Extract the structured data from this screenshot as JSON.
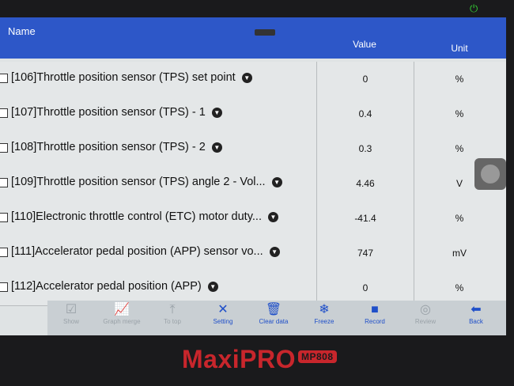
{
  "header": {
    "name": "Name",
    "value": "Value",
    "unit": "Unit"
  },
  "rows": [
    {
      "label": "[106]Throttle position sensor (TPS) set point",
      "value": "0",
      "unit": "%"
    },
    {
      "label": "[107]Throttle position sensor (TPS) - 1",
      "value": "0.4",
      "unit": "%"
    },
    {
      "label": "[108]Throttle position sensor (TPS) - 2",
      "value": "0.3",
      "unit": "%"
    },
    {
      "label": "[109]Throttle position sensor (TPS) angle 2 - Vol...",
      "value": "4.46",
      "unit": "V"
    },
    {
      "label": "[110]Electronic throttle control (ETC) motor duty...",
      "value": "-41.4",
      "unit": "%"
    },
    {
      "label": "[111]Accelerator pedal position (APP) sensor vo...",
      "value": "747",
      "unit": "mV"
    },
    {
      "label": "[112]Accelerator pedal position (APP)",
      "value": "0",
      "unit": "%"
    }
  ],
  "toolbar": [
    {
      "label": "Show",
      "icon": "checkbox-icon",
      "enabled": false
    },
    {
      "label": "Graph merge",
      "icon": "graph-icon",
      "enabled": false
    },
    {
      "label": "To top",
      "icon": "arrow-up-icon",
      "enabled": false
    },
    {
      "label": "Setting",
      "icon": "wrench-icon",
      "enabled": true
    },
    {
      "label": "Clear data",
      "icon": "trash-icon",
      "enabled": true
    },
    {
      "label": "Freeze",
      "icon": "snowflake-icon",
      "enabled": true
    },
    {
      "label": "Record",
      "icon": "camera-icon",
      "enabled": true
    },
    {
      "label": "Review",
      "icon": "play-icon",
      "enabled": false
    },
    {
      "label": "Back",
      "icon": "back-arrow-icon",
      "enabled": true
    }
  ],
  "brand": {
    "name": "MaxiPRO",
    "model": "MP808"
  },
  "colors": {
    "header": "#2d57c8",
    "accent": "#1f4fc9",
    "brand": "#c8262c"
  }
}
